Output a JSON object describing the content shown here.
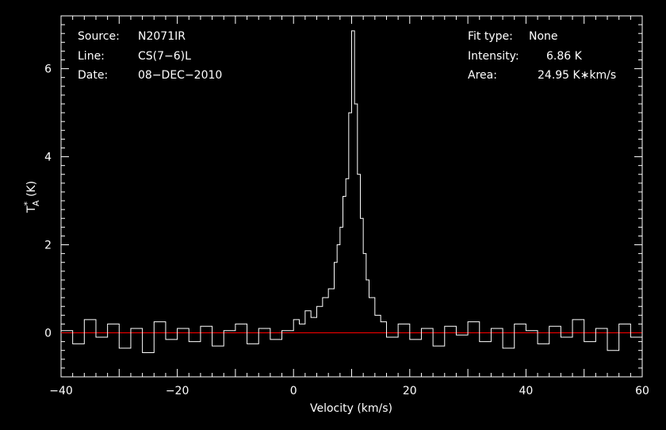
{
  "info_left": [
    {
      "key": "Source:",
      "value": "N2071IR"
    },
    {
      "key": "Line:",
      "value": "CS(7−6)L"
    },
    {
      "key": "Date:",
      "value": "08−DEC−2010"
    }
  ],
  "info_right": [
    {
      "key": "Fit type:",
      "value": "None"
    },
    {
      "key": "Intensity:",
      "value": "6.86 K"
    },
    {
      "key": "Area:",
      "value": "24.95 K∗km/s"
    }
  ],
  "colors": {
    "background": "#000000",
    "axes": "#ffffff",
    "spectrum": "#ffffff",
    "baseline": "#ff0000"
  },
  "chart_data": {
    "type": "line",
    "xlabel": "Velocity (km/s)",
    "ylabel_main": "T",
    "ylabel_sub": "A",
    "ylabel_sup": "*",
    "ylabel_unit": " (K)",
    "xlim": [
      -40,
      60
    ],
    "ylim": [
      -1.0,
      7.2
    ],
    "xticks": [
      -40,
      -20,
      0,
      20,
      40,
      60
    ],
    "xtick_labels": [
      "−40",
      "−20",
      "0",
      "20",
      "40",
      "60"
    ],
    "yticks": [
      0,
      2,
      4,
      6
    ],
    "ytick_labels": [
      "0",
      "2",
      "4",
      "6"
    ],
    "baseline": 0,
    "grid": false,
    "series": [
      {
        "x": [
          -40,
          -38,
          -36,
          -34,
          -32,
          -30,
          -28,
          -26,
          -24,
          -22,
          -20,
          -18,
          -16,
          -14,
          -12,
          -10,
          -8,
          -6,
          -4,
          -2,
          0,
          1,
          2,
          3,
          4,
          5,
          6,
          7,
          7.5,
          8,
          8.5,
          9,
          9.5,
          10,
          10.5,
          11,
          11.5,
          12,
          12.5,
          13,
          14,
          15,
          16,
          18,
          20,
          22,
          24,
          26,
          28,
          30,
          32,
          34,
          36,
          38,
          40,
          42,
          44,
          46,
          48,
          50,
          52,
          54,
          56,
          58,
          60
        ],
        "y": [
          0.05,
          -0.25,
          0.3,
          -0.1,
          0.2,
          -0.35,
          0.1,
          -0.45,
          0.25,
          -0.15,
          0.1,
          -0.2,
          0.15,
          -0.3,
          0.05,
          0.2,
          -0.25,
          0.1,
          -0.15,
          0.05,
          0.3,
          0.2,
          0.5,
          0.35,
          0.6,
          0.8,
          1.0,
          1.6,
          2.0,
          2.4,
          3.1,
          3.5,
          5.0,
          6.86,
          5.2,
          3.6,
          2.6,
          1.8,
          1.2,
          0.8,
          0.4,
          0.25,
          -0.1,
          0.2,
          -0.15,
          0.1,
          -0.3,
          0.15,
          -0.05,
          0.25,
          -0.2,
          0.1,
          -0.35,
          0.2,
          0.05,
          -0.25,
          0.15,
          -0.1,
          0.3,
          -0.2,
          0.1,
          -0.4,
          0.2,
          -0.1,
          0.05
        ]
      }
    ]
  }
}
